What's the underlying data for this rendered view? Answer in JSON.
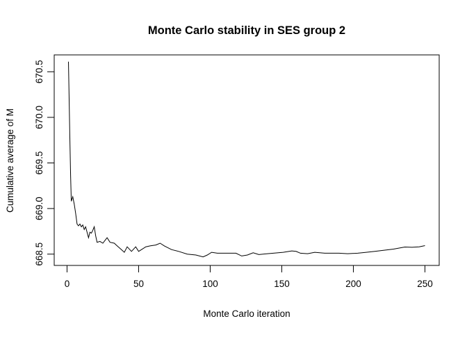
{
  "chart_data": {
    "type": "line",
    "title": "Monte Carlo stability in SES group 2",
    "xlabel": "Monte Carlo iteration",
    "ylabel": "Cumulative average of M",
    "xlim": [
      -8.96,
      259.96
    ],
    "ylim": [
      668.376,
      670.685
    ],
    "xticks": [
      0,
      50,
      100,
      150,
      200,
      250
    ],
    "yticks": [
      668.5,
      669.0,
      669.5,
      670.0,
      670.5
    ],
    "xtick_labels": [
      "0",
      "50",
      "100",
      "150",
      "200",
      "250"
    ],
    "ytick_labels": [
      "668.5",
      "669.0",
      "669.5",
      "670.0",
      "670.5"
    ],
    "grid": false,
    "line_color": "#000000",
    "series": [
      {
        "x": [
          1,
          2,
          2.5,
          3,
          4,
          5,
          6,
          7,
          8,
          9,
          10,
          11,
          12,
          13,
          14,
          15,
          16,
          17,
          18,
          19,
          20,
          21,
          23,
          25,
          27,
          28,
          30,
          33,
          35,
          38,
          40,
          42,
          45,
          48,
          50,
          53,
          55,
          58,
          62,
          65,
          68,
          73,
          78,
          84,
          90,
          95,
          98,
          101,
          105,
          110,
          118,
          122,
          126,
          130,
          134,
          140,
          151,
          157,
          160,
          163,
          168,
          173,
          180,
          190,
          196,
          203,
          209,
          215,
          220,
          228,
          236,
          241,
          246,
          250
        ],
        "y": [
          670.61,
          669.74,
          669.36,
          669.08,
          669.13,
          669.05,
          668.95,
          668.83,
          668.81,
          668.83,
          668.8,
          668.82,
          668.77,
          668.8,
          668.74,
          668.68,
          668.74,
          668.73,
          668.76,
          668.8,
          668.7,
          668.63,
          668.64,
          668.62,
          668.66,
          668.68,
          668.63,
          668.62,
          668.59,
          668.55,
          668.52,
          668.58,
          668.53,
          668.58,
          668.53,
          668.56,
          668.58,
          668.59,
          668.6,
          668.62,
          668.59,
          668.55,
          668.53,
          668.5,
          668.49,
          668.47,
          668.49,
          668.52,
          668.51,
          668.51,
          668.51,
          668.48,
          668.49,
          668.515,
          668.495,
          668.505,
          668.52,
          668.535,
          668.53,
          668.51,
          668.505,
          668.52,
          668.51,
          668.51,
          668.505,
          668.51,
          668.52,
          668.53,
          668.54,
          668.555,
          668.578,
          668.575,
          668.58,
          668.593
        ]
      }
    ]
  }
}
